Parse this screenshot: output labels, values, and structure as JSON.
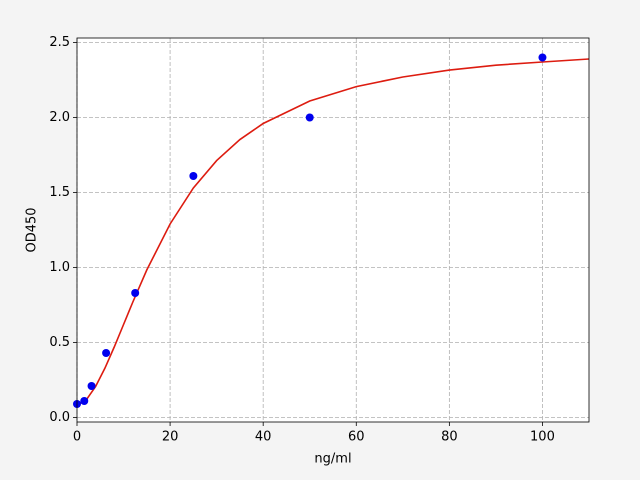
{
  "chart_data": {
    "type": "scatter",
    "xlabel": "ng/ml",
    "ylabel": "OD450",
    "xlim": [
      0,
      110
    ],
    "ylim": [
      -0.03,
      2.53
    ],
    "xticks": [
      0,
      20,
      40,
      60,
      80,
      100
    ],
    "yticks": [
      {
        "value": 0,
        "label": "0.0"
      },
      0.5,
      {
        "value": 1,
        "label": "1.0"
      },
      1.5,
      {
        "value": 2,
        "label": "2.0"
      },
      2.5
    ],
    "grid": true,
    "points": {
      "color": "#0000ee",
      "x": [
        0,
        1.56,
        3.125,
        6.25,
        12.5,
        25,
        50,
        100
      ],
      "values": [
        0.09,
        0.11,
        0.21,
        0.43,
        0.83,
        1.61,
        2.0,
        2.4
      ]
    },
    "curve": {
      "color": "#dd1c10",
      "x": [
        0,
        2,
        4,
        6,
        8,
        10,
        12,
        15,
        20,
        25,
        30,
        35,
        40,
        50,
        60,
        70,
        80,
        90,
        100,
        110
      ],
      "values": [
        0.08,
        0.118,
        0.207,
        0.329,
        0.47,
        0.62,
        0.77,
        0.984,
        1.29,
        1.53,
        1.713,
        1.853,
        1.96,
        2.11,
        2.206,
        2.27,
        2.316,
        2.349,
        2.37,
        2.39
      ]
    }
  }
}
